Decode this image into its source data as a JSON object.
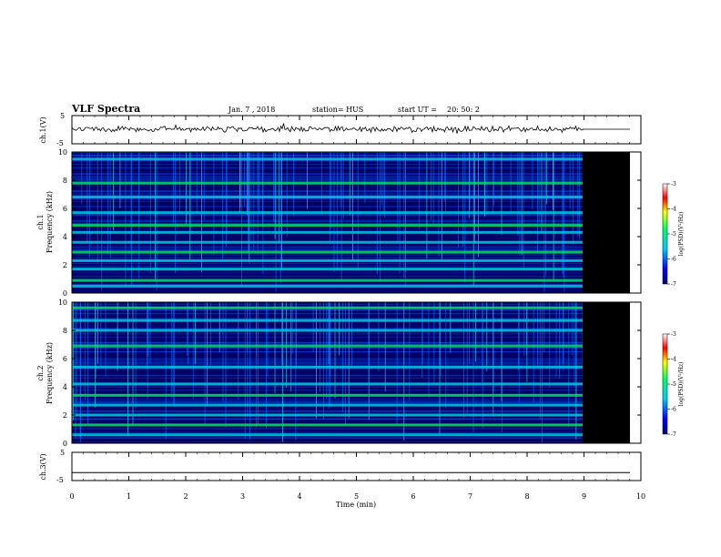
{
  "header": {
    "title": "VLF Spectra",
    "date": "Jan. 7 , 2018",
    "station": "station= HUS",
    "start_ut_label": "start UT =",
    "start_ut_value": "20: 50: 2"
  },
  "chart_data": [
    {
      "type": "line",
      "name": "ch1-waveform",
      "ylabel": "ch.1(V)",
      "ylim": [
        -5,
        5
      ],
      "y_ticks": [
        5,
        -5
      ],
      "x": [
        0,
        9,
        9.02,
        9.8
      ],
      "note_values": "noisy waveform near 0 V, small amplitude",
      "values": [
        0,
        0,
        0,
        0
      ]
    },
    {
      "type": "heatmap",
      "name": "ch1-spectrogram",
      "ylabel": "Frequency (kHz)",
      "channel_label": "ch.1",
      "xlim": [
        0,
        10
      ],
      "ylim": [
        0,
        10
      ],
      "y_ticks": [
        0,
        2,
        4,
        6,
        8,
        10
      ],
      "data_end_min": 9.0,
      "no_data_end_min": 9.8,
      "bands_khz": [
        0.5,
        0.9,
        1.7,
        2.3,
        2.9,
        3.6,
        4.3,
        4.8,
        5.7,
        6.8,
        7.8,
        9.5
      ],
      "colorbar": {
        "label": "log(PSD)(V²/Hz)",
        "ticks": [
          -3,
          -4,
          -5,
          -6,
          -7
        ],
        "range": [
          -7,
          -3
        ]
      }
    },
    {
      "type": "heatmap",
      "name": "ch2-spectrogram",
      "ylabel": "Frequency (kHz)",
      "channel_label": "ch.2",
      "xlim": [
        0,
        10
      ],
      "ylim": [
        0,
        10
      ],
      "y_ticks": [
        0,
        2,
        4,
        6,
        8,
        10
      ],
      "data_end_min": 9.0,
      "no_data_end_min": 9.8,
      "bands_khz": [
        0.6,
        1.3,
        2.0,
        2.7,
        3.4,
        4.2,
        5.4,
        6.9,
        8.0,
        8.7,
        9.6
      ],
      "colorbar": {
        "label": "log(PSD)(V²/Hz)",
        "ticks": [
          -3,
          -4,
          -5,
          -6,
          -7
        ],
        "range": [
          -7,
          -3
        ]
      }
    },
    {
      "type": "line",
      "name": "ch3-waveform",
      "ylabel": "ch.3(V)",
      "ylim": [
        -5,
        5
      ],
      "y_ticks": [
        5,
        -5
      ],
      "xlabel": "Time (min)",
      "x_ticks": [
        0,
        1,
        2,
        3,
        4,
        5,
        6,
        7,
        8,
        9,
        10
      ],
      "x": [
        0,
        10
      ],
      "values": [
        -2.2,
        -2.2
      ]
    }
  ],
  "colors": {
    "background": "#000066",
    "band": "#00e060",
    "line": "#00c8e0",
    "no_data": "#000000"
  }
}
